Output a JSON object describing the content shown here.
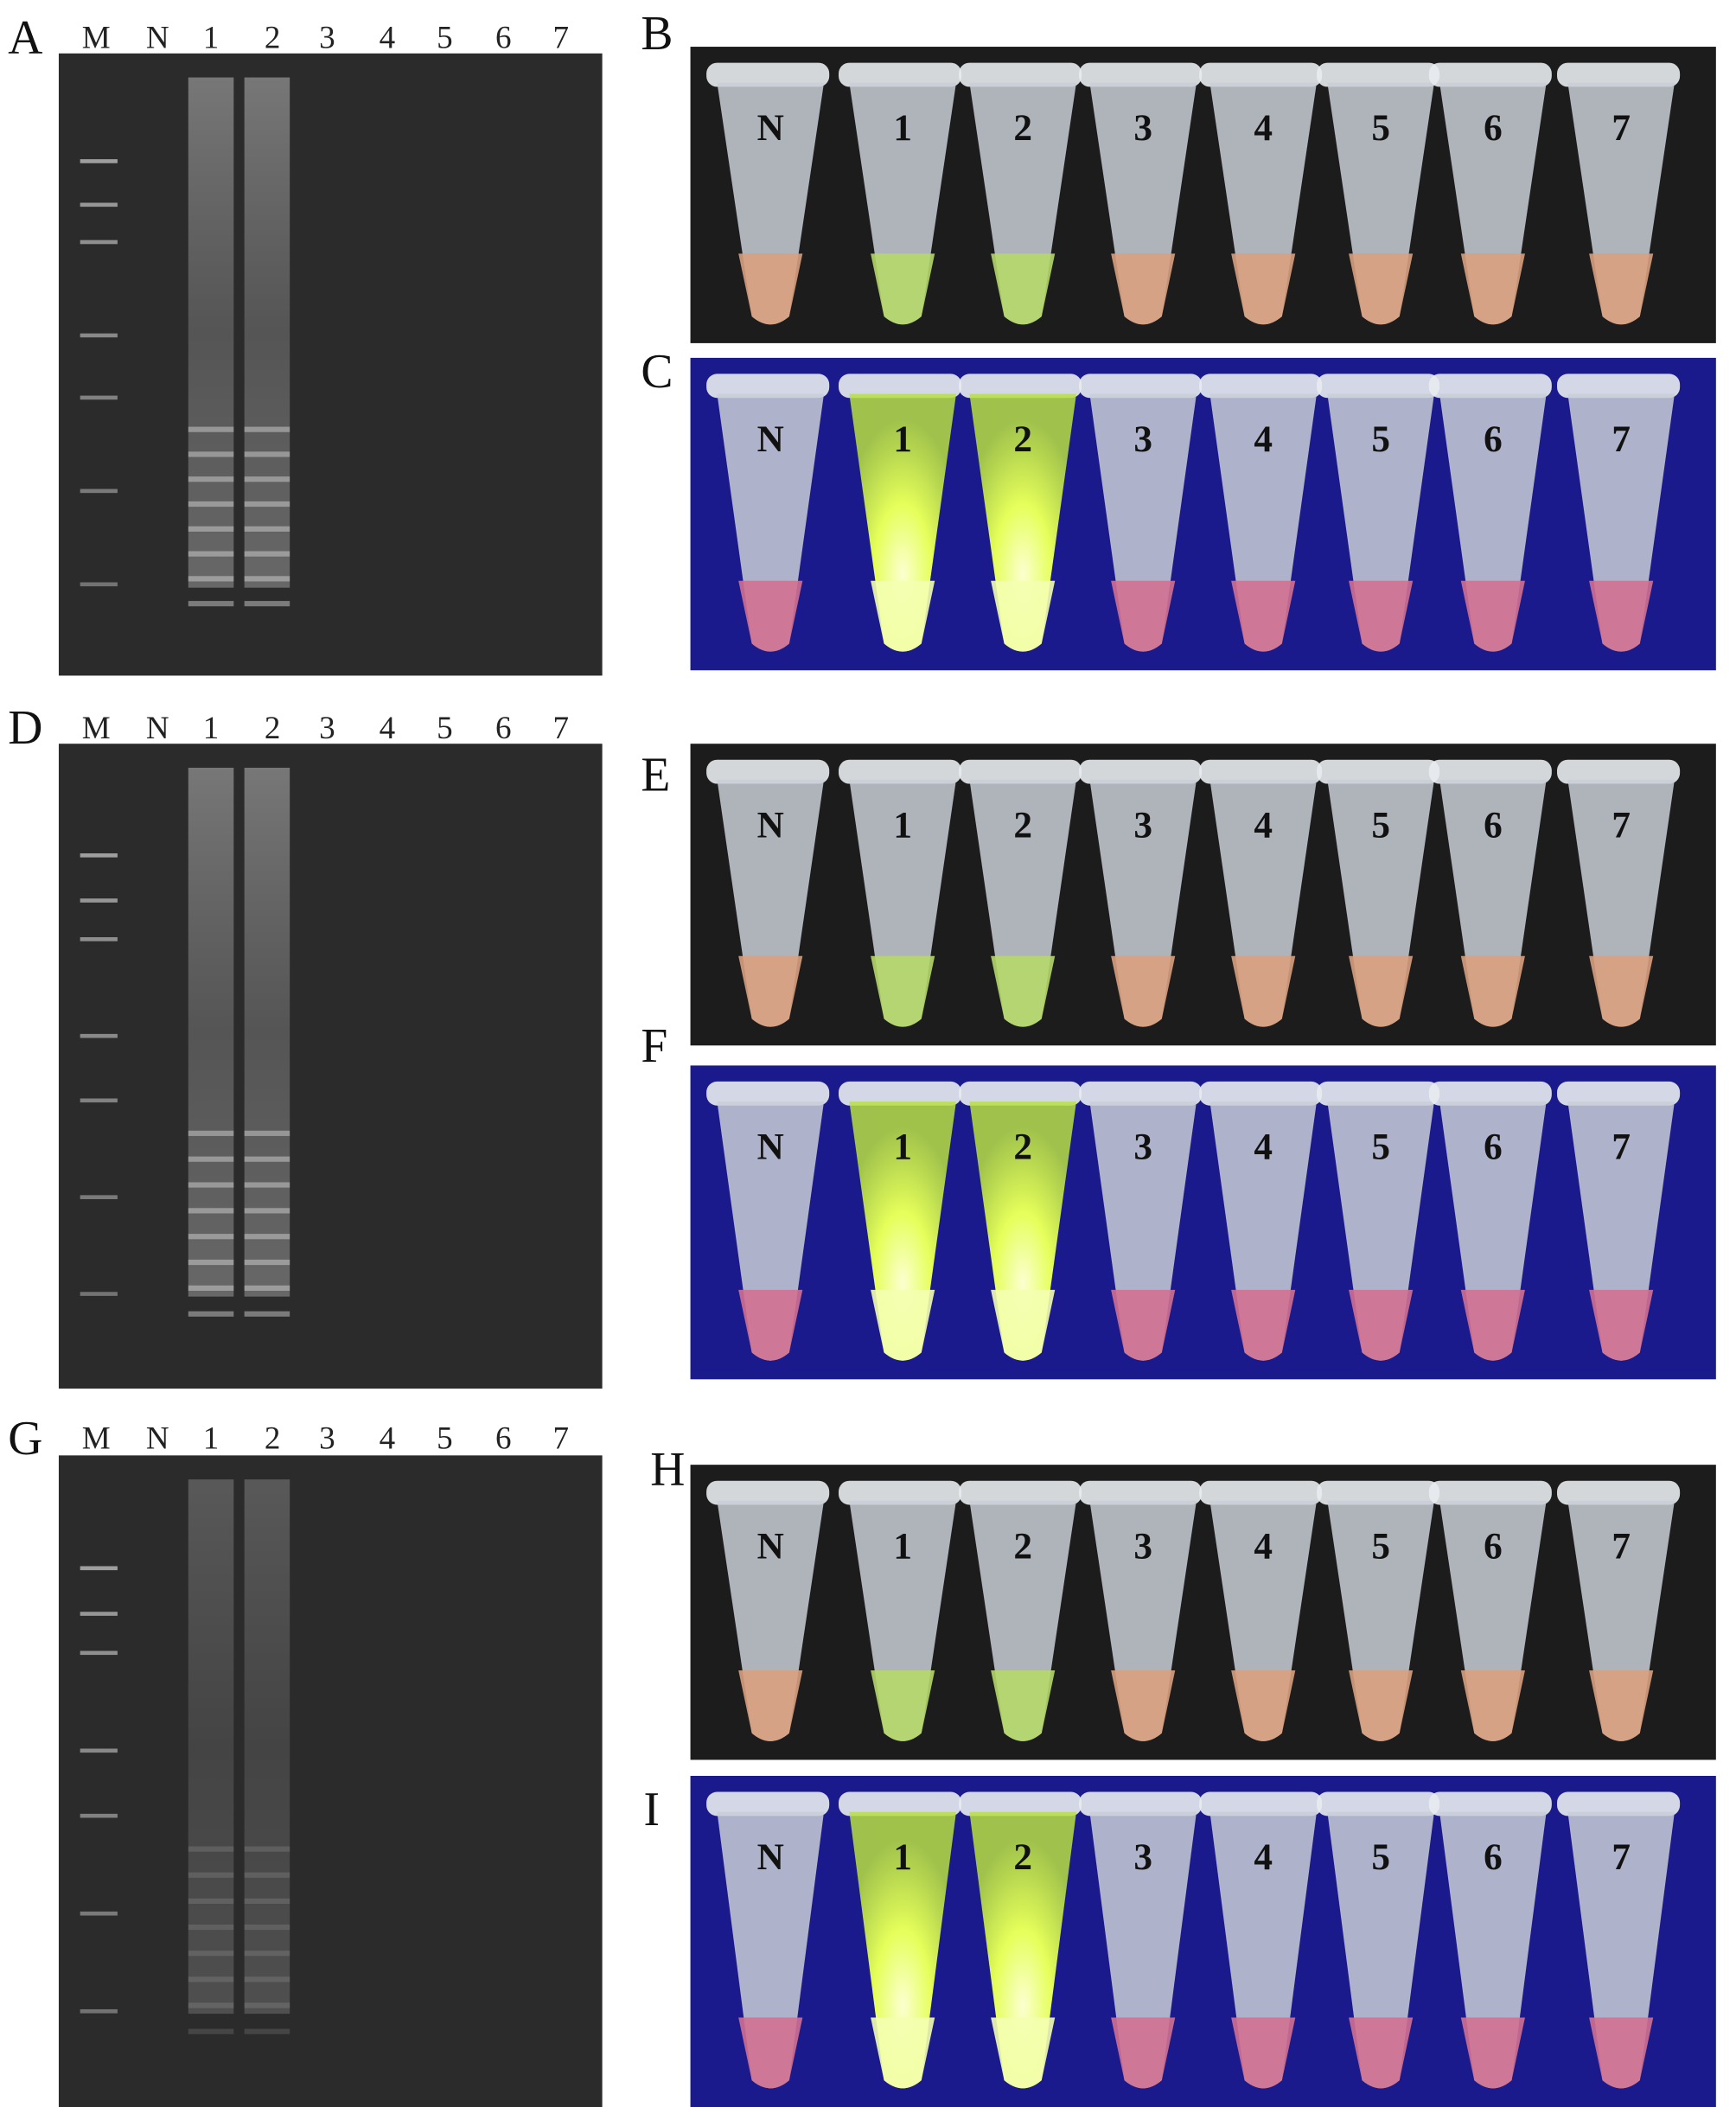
{
  "figure": {
    "gels": [
      {
        "panel": "A",
        "lanes": [
          "M",
          "N",
          "1",
          "2",
          "3",
          "4",
          "5",
          "6",
          "7"
        ]
      },
      {
        "panel": "D",
        "lanes": [
          "M",
          "N",
          "1",
          "2",
          "3",
          "4",
          "5",
          "6",
          "7"
        ]
      },
      {
        "panel": "G",
        "lanes": [
          "M",
          "N",
          "1",
          "2",
          "3",
          "4",
          "5",
          "6",
          "7"
        ]
      }
    ],
    "photos": [
      {
        "panel": "B",
        "tubes": [
          "N",
          "1",
          "2",
          "3",
          "4",
          "5",
          "6",
          "7"
        ]
      },
      {
        "panel": "C",
        "tubes": [
          "N",
          "1",
          "2",
          "3",
          "4",
          "5",
          "6",
          "7"
        ]
      },
      {
        "panel": "E",
        "tubes": [
          "N",
          "1",
          "2",
          "3",
          "4",
          "5",
          "6",
          "7"
        ]
      },
      {
        "panel": "F",
        "tubes": [
          "N",
          "1",
          "2",
          "3",
          "4",
          "5",
          "6",
          "7"
        ]
      },
      {
        "panel": "H",
        "tubes": [
          "N",
          "1",
          "2",
          "3",
          "4",
          "5",
          "6",
          "7"
        ]
      },
      {
        "panel": "I",
        "tubes": [
          "N",
          "1",
          "2",
          "3",
          "4",
          "5",
          "6",
          "7"
        ]
      }
    ]
  }
}
